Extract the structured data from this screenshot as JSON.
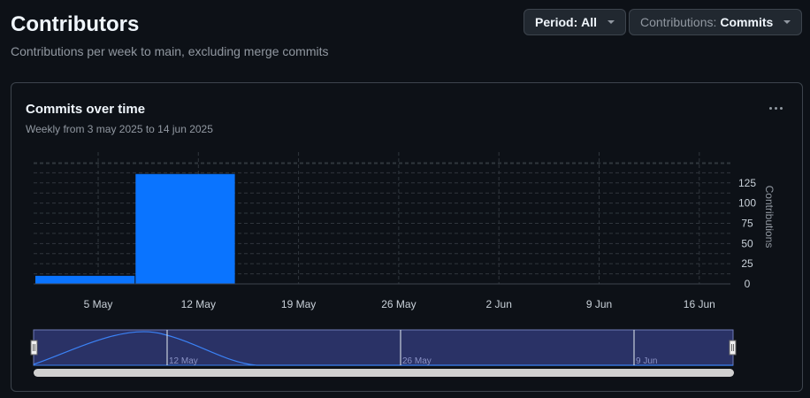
{
  "header": {
    "title": "Contributors",
    "subtitle": "Contributions per week to main, excluding merge commits"
  },
  "controls": {
    "period_prefix": "Period:",
    "period_value": "All",
    "contrib_prefix": "Contributions:",
    "contrib_value": "Commits"
  },
  "card": {
    "title": "Commits over time",
    "subtitle": "Weekly from 3 may 2025 to 14 jun 2025",
    "menu_icon": "kebab-horizontal-icon"
  },
  "chart_data": {
    "type": "bar",
    "ylabel": "Contributions",
    "y_ticks": [
      0,
      25,
      50,
      75,
      100,
      125
    ],
    "ylim": [
      0,
      150
    ],
    "x_tick_labels": [
      "5 May",
      "12 May",
      "19 May",
      "26 May",
      "2 Jun",
      "9 Jun",
      "16 Jun"
    ],
    "bars": [
      {
        "week_start": "3 May",
        "value": 10
      },
      {
        "week_start": "10 May",
        "value": 136
      }
    ],
    "bar_color": "#0a74ff",
    "grid": true
  },
  "navigator": {
    "labels": [
      "12 May",
      "26 May",
      "9 Jun"
    ]
  }
}
